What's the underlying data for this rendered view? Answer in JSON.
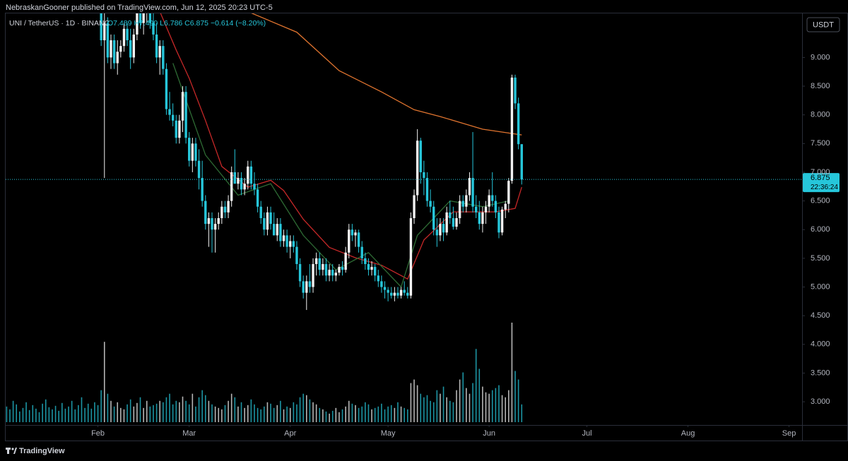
{
  "chart_data": {
    "type": "candlestick",
    "header": "NebraskanGooner published on TradingView.com, Jun 12, 2025 20:23 UTC-5",
    "symbol": "UNI / TetherUS · 1D · BINANC",
    "ohlc_text": "O7.489 H7.490 L6.786 C6.875 −0.614 (−8.20%)",
    "currency": "USDT",
    "countdown": "22:36:24",
    "brand": "TradingView",
    "up_color": "#f2f2f2",
    "down_color": "#26c6da",
    "grid": false,
    "xlim": [
      3.7,
      248
    ],
    "xticks": [
      {
        "value": 32,
        "label": "Feb"
      },
      {
        "value": 60,
        "label": "Mar"
      },
      {
        "value": 91,
        "label": "Apr"
      },
      {
        "value": 121,
        "label": "May"
      },
      {
        "value": 152,
        "label": "Jun"
      },
      {
        "value": 182,
        "label": "Jul"
      },
      {
        "value": 213,
        "label": "Aug"
      },
      {
        "value": 244,
        "label": "Sep"
      }
    ],
    "ylim": [
      2.62,
      9.78
    ],
    "yticks": [
      {
        "value": 3,
        "label": "3.000"
      },
      {
        "value": 3.5,
        "label": "3.500"
      },
      {
        "value": 4,
        "label": "4.000"
      },
      {
        "value": 4.5,
        "label": "4.500"
      },
      {
        "value": 5,
        "label": "5.000"
      },
      {
        "value": 5.5,
        "label": "5.500"
      },
      {
        "value": 6,
        "label": "6.000"
      },
      {
        "value": 6.5,
        "label": "6.500"
      },
      {
        "value": 7,
        "label": "7.000"
      },
      {
        "value": 7.5,
        "label": "7.500"
      },
      {
        "value": 8,
        "label": "8.000"
      },
      {
        "value": 8.5,
        "label": "8.500"
      },
      {
        "value": 9,
        "label": "9.000"
      }
    ],
    "x": [
      4,
      5,
      6,
      7,
      8,
      9,
      10,
      11,
      12,
      13,
      14,
      15,
      16,
      17,
      18,
      19,
      20,
      21,
      22,
      23,
      24,
      25,
      26,
      27,
      28,
      29,
      30,
      31,
      32,
      33,
      34,
      35,
      36,
      37,
      38,
      39,
      40,
      41,
      42,
      43,
      44,
      45,
      46,
      47,
      48,
      49,
      50,
      51,
      52,
      53,
      54,
      55,
      56,
      57,
      58,
      59,
      60,
      61,
      62,
      63,
      64,
      65,
      66,
      67,
      68,
      69,
      70,
      71,
      72,
      73,
      74,
      75,
      76,
      77,
      78,
      79,
      80,
      81,
      82,
      83,
      84,
      85,
      86,
      87,
      88,
      89,
      90,
      91,
      92,
      93,
      94,
      95,
      96,
      97,
      98,
      99,
      100,
      101,
      102,
      103,
      104,
      105,
      106,
      107,
      108,
      109,
      110,
      111,
      112,
      113,
      114,
      115,
      116,
      117,
      118,
      119,
      120,
      121,
      122,
      123,
      124,
      125,
      126,
      127,
      128,
      129,
      130,
      131,
      132,
      133,
      134,
      135,
      136,
      137,
      138,
      139,
      140,
      141,
      142,
      143,
      144,
      145,
      146,
      147,
      148,
      149,
      150,
      151,
      152,
      153,
      154,
      155,
      156,
      157,
      158,
      159,
      160,
      161,
      162
    ],
    "ohlc": [
      null,
      null,
      null,
      null,
      null,
      null,
      null,
      null,
      null,
      null,
      null,
      null,
      null,
      null,
      null,
      null,
      null,
      null,
      null,
      null,
      null,
      null,
      null,
      null,
      null,
      null,
      null,
      null,
      null,
      [
        10.9,
        11.0,
        9.2,
        9.3
      ],
      [
        9.3,
        9.8,
        6.9,
        9.6
      ],
      [
        9.6,
        9.7,
        8.9,
        9.0
      ],
      [
        9.0,
        9.4,
        8.8,
        9.3
      ],
      [
        9.3,
        9.4,
        8.8,
        8.9
      ],
      [
        8.9,
        9.3,
        8.7,
        9.1
      ],
      [
        9.1,
        9.3,
        9.0,
        9.2
      ],
      [
        9.2,
        9.6,
        9.1,
        9.5
      ],
      [
        9.5,
        9.6,
        9.2,
        9.3
      ],
      [
        9.3,
        9.5,
        8.8,
        9.0
      ],
      [
        9.0,
        9.5,
        8.9,
        9.4
      ],
      [
        9.4,
        9.9,
        9.3,
        9.8
      ],
      [
        9.8,
        10.0,
        9.5,
        9.6
      ],
      [
        9.6,
        9.9,
        9.4,
        9.8
      ],
      [
        9.8,
        10.2,
        9.6,
        9.9
      ],
      [
        9.9,
        10.0,
        9.5,
        9.6
      ],
      [
        9.6,
        9.8,
        9.3,
        9.4
      ],
      [
        9.4,
        9.6,
        8.9,
        9.0
      ],
      [
        9.0,
        9.3,
        8.7,
        9.2
      ],
      [
        9.2,
        9.3,
        8.7,
        8.8
      ],
      [
        8.8,
        8.9,
        8.0,
        8.1
      ],
      [
        8.1,
        8.4,
        7.9,
        8.0
      ],
      [
        8.0,
        8.2,
        7.8,
        7.9
      ],
      [
        7.9,
        8.0,
        7.5,
        7.6
      ],
      [
        7.6,
        8.0,
        7.5,
        7.9
      ],
      [
        7.9,
        8.5,
        7.7,
        8.4
      ],
      [
        8.4,
        8.5,
        7.5,
        7.6
      ],
      [
        7.6,
        7.7,
        7.1,
        7.2
      ],
      [
        7.2,
        7.6,
        7.0,
        7.5
      ],
      [
        7.5,
        7.6,
        7.1,
        7.2
      ],
      [
        7.2,
        7.4,
        6.7,
        6.9
      ],
      [
        6.9,
        7.2,
        6.4,
        6.5
      ],
      [
        6.5,
        6.6,
        6.0,
        6.1
      ],
      [
        6.1,
        6.3,
        5.7,
        6.2
      ],
      [
        6.2,
        6.3,
        5.6,
        6.0
      ],
      [
        6.0,
        6.2,
        5.6,
        6.1
      ],
      [
        6.1,
        6.3,
        6.0,
        6.2
      ],
      [
        6.2,
        6.5,
        6.1,
        6.4
      ],
      [
        6.4,
        6.5,
        6.2,
        6.3
      ],
      [
        6.3,
        6.6,
        6.2,
        6.5
      ],
      [
        6.5,
        7.1,
        6.4,
        7.0
      ],
      [
        7.0,
        7.4,
        6.8,
        6.8
      ],
      [
        6.8,
        7.0,
        6.7,
        6.9
      ],
      [
        6.9,
        7.0,
        6.6,
        6.7
      ],
      [
        6.7,
        6.9,
        6.6,
        6.8
      ],
      [
        6.8,
        7.2,
        6.7,
        7.1
      ],
      [
        7.1,
        7.2,
        6.7,
        6.8
      ],
      [
        6.8,
        7.0,
        6.6,
        6.7
      ],
      [
        6.7,
        6.8,
        6.3,
        6.4
      ],
      [
        6.4,
        6.5,
        6.1,
        6.2
      ],
      [
        6.2,
        6.3,
        5.9,
        6.0
      ],
      [
        6.0,
        6.4,
        5.9,
        6.3
      ],
      [
        6.3,
        6.4,
        6.0,
        6.1
      ],
      [
        6.1,
        6.3,
        5.9,
        5.9
      ],
      [
        5.9,
        6.2,
        5.8,
        6.1
      ],
      [
        6.1,
        6.2,
        5.7,
        5.8
      ],
      [
        5.8,
        6.0,
        5.7,
        5.9
      ],
      [
        5.9,
        6.0,
        5.6,
        5.7
      ],
      [
        5.7,
        5.9,
        5.5,
        5.8
      ],
      [
        5.8,
        5.9,
        5.6,
        5.7
      ],
      [
        5.7,
        5.8,
        5.3,
        5.4
      ],
      [
        5.4,
        5.5,
        5.0,
        5.1
      ],
      [
        5.1,
        5.2,
        4.8,
        4.9
      ],
      [
        4.9,
        5.2,
        4.6,
        5.1
      ],
      [
        5.1,
        5.4,
        4.9,
        5.0
      ],
      [
        5.0,
        5.5,
        4.9,
        5.4
      ],
      [
        5.4,
        5.6,
        5.2,
        5.5
      ],
      [
        5.5,
        5.6,
        5.2,
        5.3
      ],
      [
        5.3,
        5.5,
        5.2,
        5.4
      ],
      [
        5.4,
        5.5,
        5.1,
        5.2
      ],
      [
        5.2,
        5.4,
        5.1,
        5.3
      ],
      [
        5.3,
        5.4,
        5.1,
        5.2
      ],
      [
        5.2,
        5.3,
        5.1,
        5.25
      ],
      [
        5.25,
        5.4,
        5.2,
        5.35
      ],
      [
        5.35,
        5.45,
        5.2,
        5.3
      ],
      [
        5.3,
        5.7,
        5.25,
        5.6
      ],
      [
        5.6,
        6.1,
        5.5,
        6.0
      ],
      [
        6.0,
        6.1,
        5.8,
        5.9
      ],
      [
        5.9,
        6.0,
        5.7,
        5.95
      ],
      [
        5.95,
        6.0,
        5.6,
        5.7
      ],
      [
        5.7,
        5.8,
        5.4,
        5.5
      ],
      [
        5.5,
        5.6,
        5.3,
        5.4
      ],
      [
        5.4,
        5.5,
        5.2,
        5.3
      ],
      [
        5.3,
        5.45,
        5.2,
        5.35
      ],
      [
        5.35,
        5.4,
        5.1,
        5.2
      ],
      [
        5.2,
        5.3,
        5.0,
        5.1
      ],
      [
        5.1,
        5.2,
        4.9,
        5.0
      ],
      [
        5.0,
        5.1,
        4.8,
        4.95
      ],
      [
        4.95,
        5.0,
        4.75,
        4.9
      ],
      [
        4.9,
        5.0,
        4.8,
        4.85
      ],
      [
        4.85,
        5.0,
        4.75,
        4.9
      ],
      [
        4.9,
        5.0,
        4.8,
        4.85
      ],
      [
        4.85,
        5.0,
        4.8,
        4.95
      ],
      [
        4.95,
        5.1,
        4.85,
        4.9
      ],
      [
        4.9,
        5.0,
        4.8,
        4.85
      ],
      [
        4.85,
        6.3,
        4.8,
        6.2
      ],
      [
        6.2,
        6.7,
        6.1,
        6.6
      ],
      [
        6.6,
        7.75,
        6.5,
        7.55
      ],
      [
        7.55,
        7.6,
        6.8,
        7.0
      ],
      [
        7.0,
        7.2,
        6.6,
        6.9
      ],
      [
        6.9,
        7.0,
        6.4,
        6.5
      ],
      [
        6.5,
        6.7,
        6.3,
        6.4
      ],
      [
        6.4,
        6.5,
        5.9,
        6.0
      ],
      [
        6.0,
        6.2,
        5.7,
        5.9
      ],
      [
        5.9,
        6.2,
        5.8,
        6.1
      ],
      [
        6.1,
        6.2,
        5.8,
        5.95
      ],
      [
        5.95,
        6.4,
        5.9,
        6.3
      ],
      [
        6.3,
        6.5,
        6.1,
        6.2
      ],
      [
        6.2,
        6.4,
        6.0,
        6.05
      ],
      [
        6.05,
        6.3,
        6.0,
        6.2
      ],
      [
        6.2,
        6.6,
        6.1,
        6.5
      ],
      [
        6.5,
        6.6,
        6.3,
        6.4
      ],
      [
        6.4,
        6.7,
        6.3,
        6.6
      ],
      [
        6.6,
        7.0,
        6.5,
        6.9
      ],
      [
        6.9,
        7.7,
        6.3,
        6.4
      ],
      [
        6.4,
        6.6,
        6.2,
        6.3
      ],
      [
        6.3,
        6.5,
        6.0,
        6.1
      ],
      [
        6.1,
        6.4,
        5.95,
        6.3
      ],
      [
        6.3,
        6.5,
        6.1,
        6.4
      ],
      [
        6.4,
        6.7,
        6.3,
        6.6
      ],
      [
        6.6,
        7.0,
        6.4,
        6.5
      ],
      [
        6.5,
        6.6,
        6.2,
        6.3
      ],
      [
        6.3,
        6.4,
        5.85,
        5.95
      ],
      [
        5.95,
        6.4,
        5.9,
        6.35
      ],
      [
        6.35,
        6.5,
        6.2,
        6.45
      ],
      [
        6.45,
        6.9,
        6.3,
        6.85
      ],
      [
        6.85,
        8.7,
        6.8,
        8.65
      ],
      [
        8.65,
        8.7,
        8.1,
        8.2
      ],
      [
        8.2,
        8.3,
        7.4,
        7.489
      ],
      [
        7.489,
        7.49,
        6.786,
        6.875
      ]
    ],
    "volume": [
      22,
      18,
      30,
      25,
      15,
      20,
      28,
      17,
      24,
      19,
      14,
      26,
      32,
      21,
      18,
      23,
      16,
      27,
      19,
      22,
      30,
      18,
      24,
      35,
      20,
      26,
      19,
      28,
      24,
      45,
      113,
      40,
      30,
      22,
      28,
      20,
      18,
      25,
      32,
      22,
      27,
      35,
      20,
      30,
      22,
      24,
      26,
      30,
      28,
      35,
      40,
      25,
      30,
      28,
      36,
      30,
      25,
      40,
      22,
      35,
      45,
      38,
      30,
      25,
      22,
      20,
      18,
      24,
      30,
      40,
      35,
      22,
      28,
      20,
      24,
      32,
      25,
      20,
      18,
      22,
      28,
      26,
      20,
      24,
      30,
      18,
      22,
      20,
      28,
      25,
      35,
      40,
      38,
      32,
      28,
      25,
      20,
      18,
      15,
      12,
      16,
      20,
      14,
      18,
      22,
      30,
      26,
      24,
      20,
      22,
      28,
      25,
      18,
      20,
      22,
      26,
      18,
      22,
      24,
      20,
      28,
      22,
      20,
      18,
      55,
      60,
      52,
      40,
      35,
      38,
      30,
      28,
      45,
      40,
      50,
      35,
      30,
      28,
      45,
      60,
      70,
      48,
      40,
      55,
      103,
      75,
      50,
      42,
      40,
      45,
      48,
      52,
      38,
      35,
      45,
      140,
      72,
      60,
      25
    ],
    "lines": [
      {
        "color": "#e0742f",
        "x": [
          78,
          93,
          106,
          119,
          129,
          137,
          150,
          162
        ],
        "values": [
          9.8,
          9.44,
          8.77,
          8.4,
          8.09,
          7.97,
          7.75,
          7.65
        ]
      },
      {
        "color": "#c62828",
        "x": [
          51,
          56,
          60,
          65,
          70,
          78,
          85,
          89,
          95,
          103,
          111,
          119,
          127,
          132,
          141,
          154,
          160,
          162
        ],
        "values": [
          9.8,
          9.13,
          8.64,
          7.9,
          7.1,
          6.74,
          6.86,
          6.68,
          6.18,
          5.69,
          5.51,
          5.38,
          5.14,
          5.82,
          6.31,
          6.31,
          6.37,
          6.74
        ]
      },
      {
        "color": "#2e6b34",
        "x": [
          55,
          65,
          75,
          85,
          95,
          105,
          115,
          125,
          130,
          140,
          150,
          158
        ],
        "values": [
          8.9,
          7.3,
          6.6,
          6.8,
          5.9,
          5.3,
          5.6,
          5.0,
          5.9,
          6.5,
          6.4,
          6.5
        ]
      }
    ]
  }
}
